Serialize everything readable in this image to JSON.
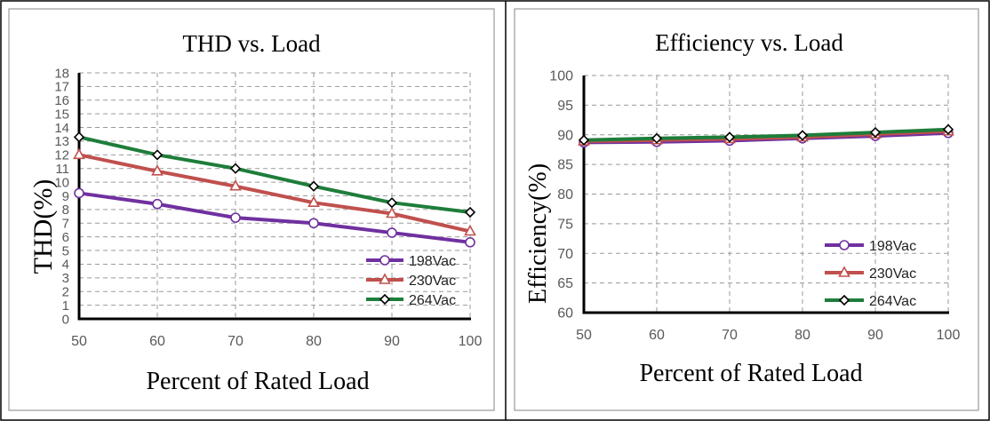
{
  "chart_data": [
    {
      "type": "line",
      "title": "THD vs. Load",
      "xlabel": "Percent of Rated Load",
      "ylabel": "THD(%)",
      "x": [
        50,
        60,
        70,
        80,
        90,
        100
      ],
      "xlim": [
        50,
        100
      ],
      "ylim": [
        0,
        18
      ],
      "xticks": [
        "50",
        "60",
        "70",
        "80",
        "90",
        "100"
      ],
      "yticks": [
        "0",
        "1",
        "2",
        "3",
        "4",
        "5",
        "6",
        "7",
        "8",
        "9",
        "10",
        "11",
        "12",
        "13",
        "14",
        "15",
        "16",
        "17",
        "18"
      ],
      "grid": true,
      "legend_position": "bottom-right",
      "series": [
        {
          "name": "198Vac",
          "values": [
            9.2,
            8.4,
            7.4,
            7.0,
            6.3,
            5.6
          ],
          "color": "#7030a0",
          "marker": "circle"
        },
        {
          "name": "230Vac",
          "values": [
            12.0,
            10.8,
            9.7,
            8.5,
            7.7,
            6.4
          ],
          "color": "#c0504d",
          "marker": "triangle"
        },
        {
          "name": "264Vac",
          "values": [
            13.3,
            12.0,
            11.0,
            9.7,
            8.5,
            7.8
          ],
          "color": "#1e7d3a",
          "marker": "diamond"
        }
      ]
    },
    {
      "type": "line",
      "title": "Efficiency vs. Load",
      "xlabel": "Percent of Rated Load",
      "ylabel": "Efficiency(%)",
      "x": [
        50,
        60,
        70,
        80,
        90,
        100
      ],
      "xlim": [
        50,
        100
      ],
      "ylim": [
        60,
        100
      ],
      "xticks": [
        "50",
        "60",
        "70",
        "80",
        "90",
        "100"
      ],
      "yticks": [
        "60",
        "65",
        "70",
        "75",
        "80",
        "85",
        "90",
        "95",
        "100"
      ],
      "grid": true,
      "legend_position": "bottom-right",
      "series": [
        {
          "name": "198Vac",
          "values": [
            88.7,
            88.8,
            89.0,
            89.4,
            89.8,
            90.3
          ],
          "color": "#7030a0",
          "marker": "circle"
        },
        {
          "name": "230Vac",
          "values": [
            88.9,
            89.1,
            89.3,
            89.6,
            90.1,
            90.6
          ],
          "color": "#c0504d",
          "marker": "triangle"
        },
        {
          "name": "264Vac",
          "values": [
            89.1,
            89.4,
            89.6,
            89.9,
            90.4,
            90.9
          ],
          "color": "#1e7d3a",
          "marker": "diamond"
        }
      ]
    }
  ]
}
